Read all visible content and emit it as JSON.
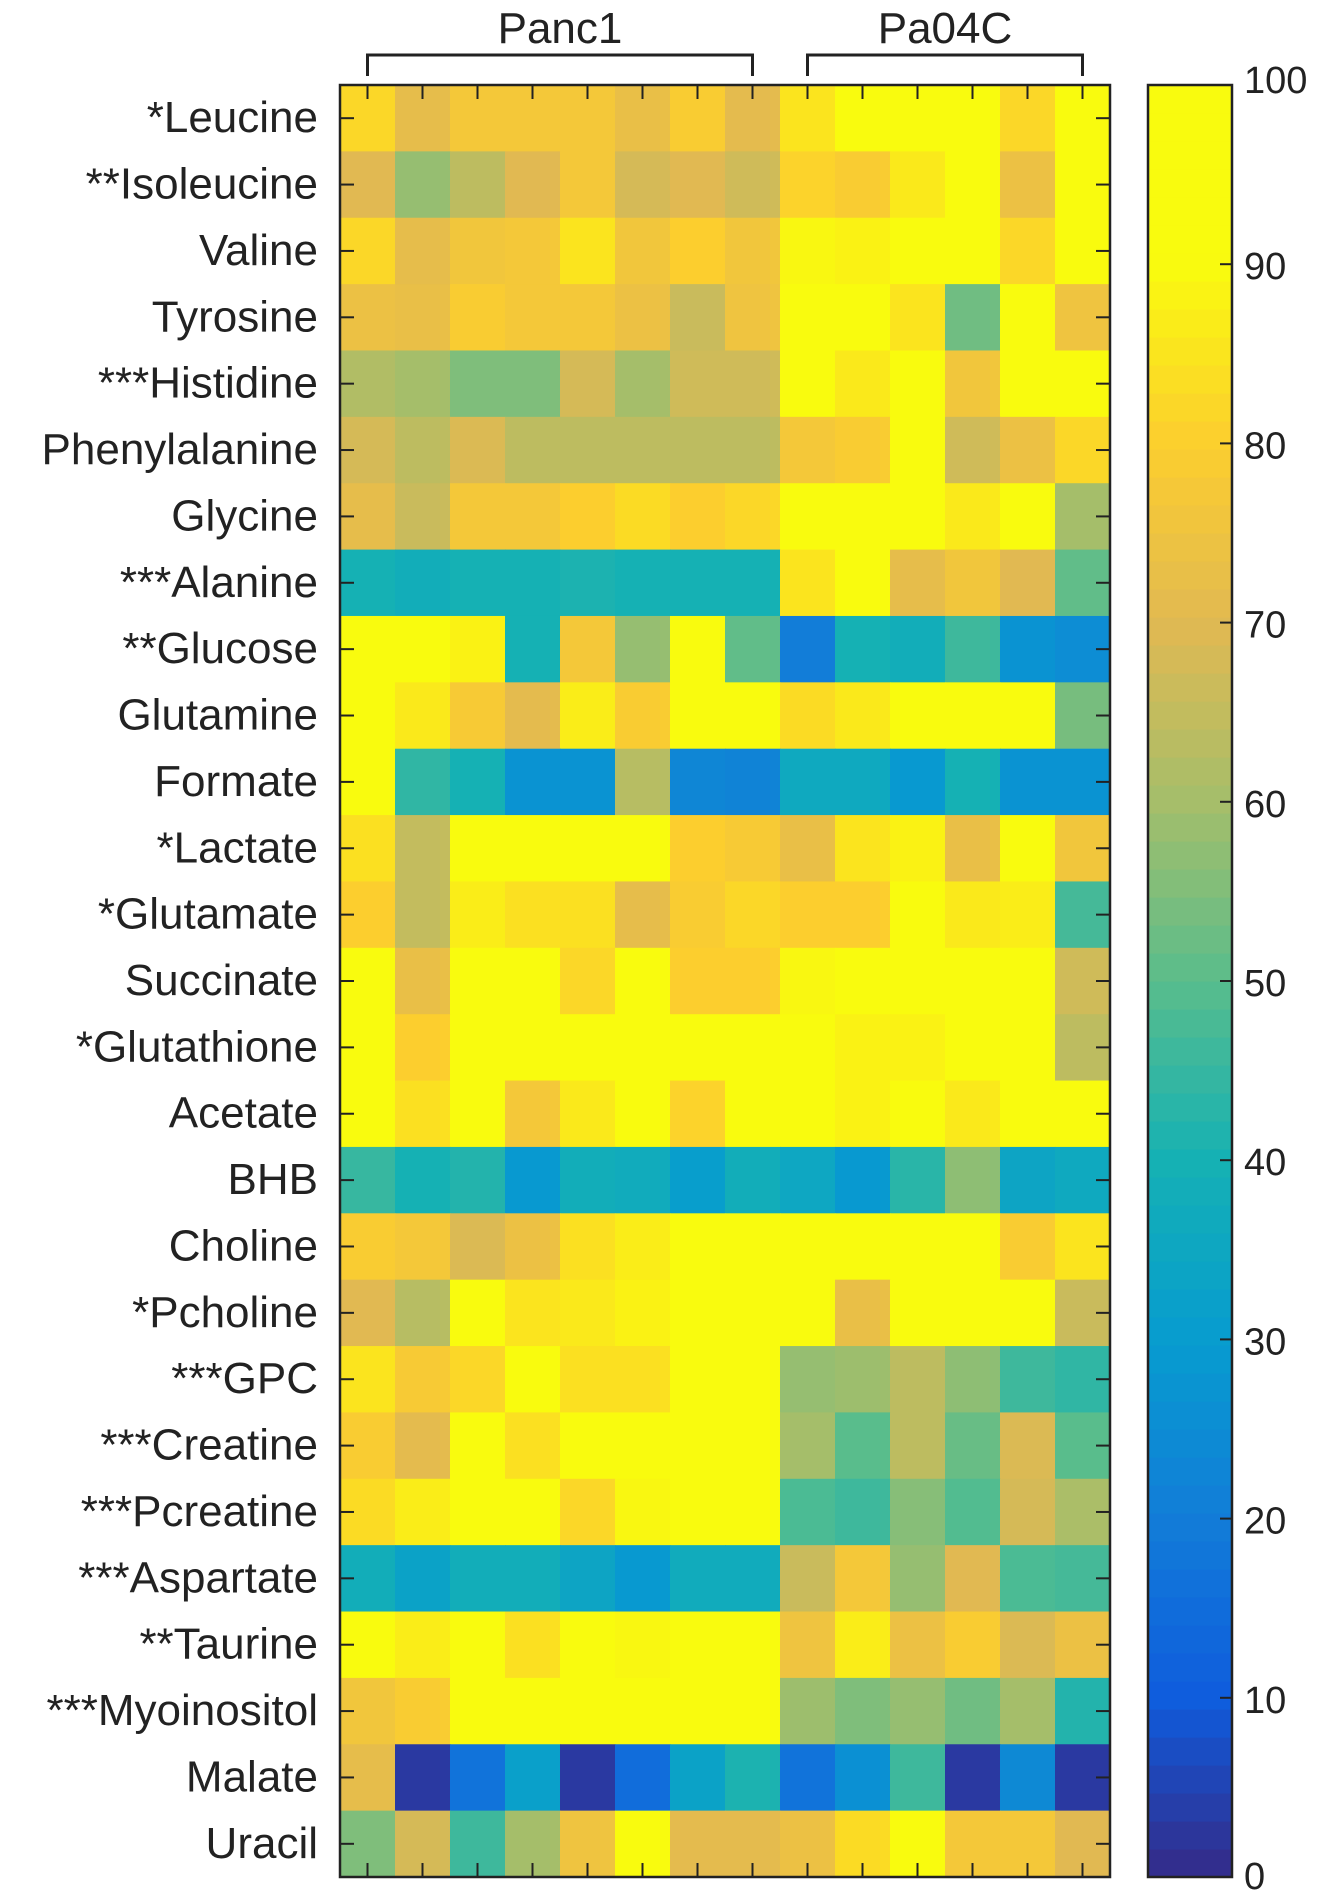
{
  "chart_data": {
    "type": "heatmap",
    "title": "",
    "groups": [
      {
        "name": "Panc1",
        "columns": 8
      },
      {
        "name": "Pa04C",
        "columns": 6
      }
    ],
    "rows": [
      "*Leucine",
      "**Isoleucine",
      "Valine",
      "Tyrosine",
      "***Histidine",
      "Phenylalanine",
      "Glycine",
      "***Alanine",
      "**Glucose",
      "Glutamine",
      "Formate",
      "*Lactate",
      "*Glutamate",
      "Succinate",
      "*Glutathione",
      "Acetate",
      "BHB",
      "Choline",
      "*Pcholine",
      "***GPC",
      "***Creatine",
      "***Pcreatine",
      "***Aspartate",
      "**Taurine",
      "***Myoinositol",
      "Malate",
      "Uracil"
    ],
    "values": [
      [
        82,
        72,
        77,
        77,
        77,
        73,
        79,
        71,
        85,
        90,
        99,
        95,
        82,
        93
      ],
      [
        70,
        58,
        64,
        70,
        77,
        68,
        70,
        67,
        81,
        79,
        86,
        99,
        74,
        91
      ],
      [
        82,
        72,
        76,
        77,
        85,
        76,
        80,
        76,
        89,
        88,
        98,
        96,
        82,
        93
      ],
      [
        74,
        73,
        79,
        77,
        77,
        74,
        66,
        75,
        98,
        96,
        85,
        53,
        92,
        75
      ],
      [
        62,
        60,
        55,
        55,
        68,
        60,
        67,
        67,
        93,
        86,
        92,
        76,
        99,
        97
      ],
      [
        68,
        64,
        69,
        64,
        64,
        64,
        64,
        64,
        77,
        79,
        99,
        67,
        74,
        82
      ],
      [
        72,
        66,
        77,
        77,
        80,
        83,
        80,
        82,
        98,
        95,
        98,
        86,
        95,
        60
      ],
      [
        40,
        38,
        40,
        40,
        41,
        40,
        40,
        40,
        85,
        90,
        72,
        76,
        70,
        51
      ],
      [
        98,
        98,
        88,
        40,
        77,
        58,
        98,
        51,
        20,
        40,
        38,
        46,
        27,
        25
      ],
      [
        90,
        86,
        78,
        71,
        87,
        79,
        91,
        91,
        83,
        86,
        97,
        98,
        95,
        54
      ],
      [
        95,
        44,
        40,
        27,
        27,
        63,
        23,
        22,
        36,
        36,
        29,
        40,
        27,
        27
      ],
      [
        84,
        65,
        92,
        91,
        92,
        97,
        80,
        78,
        73,
        85,
        88,
        73,
        99,
        76
      ],
      [
        80,
        65,
        87,
        84,
        84,
        72,
        79,
        82,
        80,
        80,
        98,
        86,
        87,
        47
      ],
      [
        91,
        73,
        95,
        93,
        82,
        91,
        80,
        80,
        89,
        92,
        99,
        99,
        94,
        67
      ],
      [
        90,
        80,
        97,
        91,
        91,
        91,
        91,
        93,
        99,
        88,
        88,
        93,
        90,
        64
      ],
      [
        98,
        84,
        90,
        77,
        86,
        94,
        81,
        98,
        91,
        88,
        91,
        86,
        94,
        94
      ],
      [
        45,
        40,
        42,
        29,
        38,
        37,
        31,
        38,
        35,
        29,
        43,
        57,
        34,
        36
      ],
      [
        79,
        77,
        69,
        74,
        84,
        87,
        92,
        91,
        94,
        99,
        99,
        90,
        79,
        85
      ],
      [
        70,
        63,
        90,
        85,
        86,
        88,
        91,
        91,
        98,
        73,
        94,
        91,
        98,
        66
      ],
      [
        85,
        78,
        82,
        98,
        84,
        84,
        93,
        92,
        58,
        59,
        64,
        57,
        46,
        44
      ],
      [
        79,
        71,
        96,
        84,
        98,
        90,
        96,
        91,
        60,
        50,
        64,
        52,
        69,
        50
      ],
      [
        83,
        87,
        94,
        94,
        82,
        89,
        91,
        98,
        48,
        46,
        56,
        49,
        68,
        61
      ],
      [
        38,
        33,
        38,
        38,
        34,
        29,
        37,
        37,
        66,
        77,
        58,
        70,
        48,
        47
      ],
      [
        98,
        87,
        95,
        84,
        93,
        89,
        94,
        91,
        75,
        87,
        74,
        79,
        69,
        74
      ],
      [
        76,
        79,
        94,
        94,
        94,
        98,
        94,
        93,
        59,
        55,
        58,
        53,
        60,
        42
      ],
      [
        72,
        3,
        17,
        32,
        3,
        15,
        33,
        41,
        17,
        26,
        46,
        3,
        24,
        3
      ],
      [
        55,
        68,
        46,
        60,
        75,
        92,
        71,
        71,
        74,
        83,
        99,
        77,
        77,
        70
      ]
    ],
    "colorbar": {
      "min": 0,
      "max": 100,
      "ticks": [
        "0",
        "10",
        "20",
        "30",
        "40",
        "50",
        "60",
        "70",
        "80",
        "90",
        "100"
      ]
    },
    "colormap": "parula"
  }
}
